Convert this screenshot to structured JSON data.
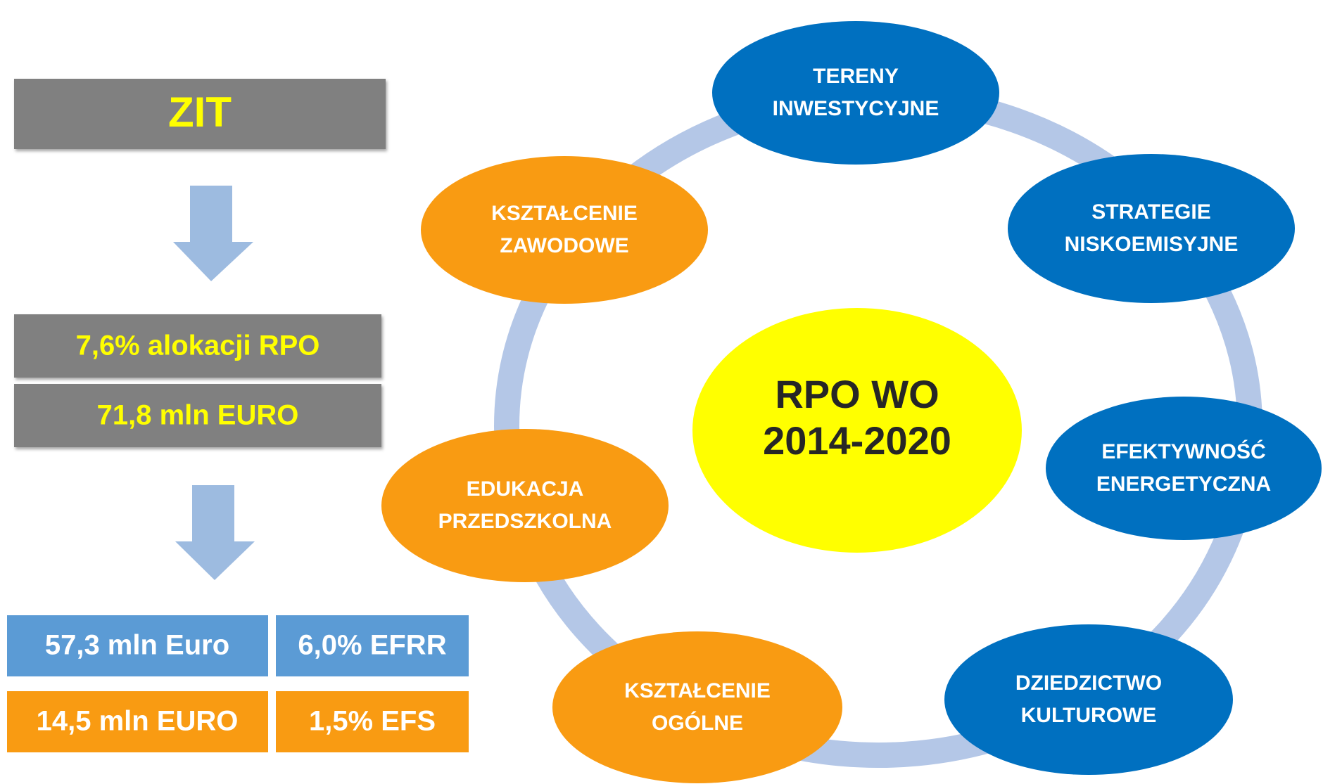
{
  "left": {
    "title": "ZIT",
    "allocation": [
      "7,6% alokacji RPO",
      "71,8 mln EURO"
    ],
    "funds": [
      [
        "57,3 mln Euro",
        "6,0% EFRR"
      ],
      [
        "14,5 mln EURO",
        "1,5% EFS"
      ]
    ]
  },
  "center": {
    "lines": [
      "RPO WO",
      "2014-2020"
    ]
  },
  "nodes": [
    {
      "lines": [
        "TERENY",
        "INWESTYCYJNE"
      ]
    },
    {
      "lines": [
        "STRATEGIE",
        "NISKOEMISYJNE"
      ]
    },
    {
      "lines": [
        "EFEKTYWNOŚĆ",
        "ENERGETYCZNA"
      ]
    },
    {
      "lines": [
        "DZIEDZICTWO",
        "KULTUROWE"
      ]
    },
    {
      "lines": [
        "KSZTAŁCENIE",
        "OGÓLNE"
      ]
    },
    {
      "lines": [
        "EDUKACJA",
        "PRZEDSZKOLNA"
      ]
    },
    {
      "lines": [
        "KSZTAŁCENIE",
        "ZAWODOWE"
      ]
    }
  ]
}
